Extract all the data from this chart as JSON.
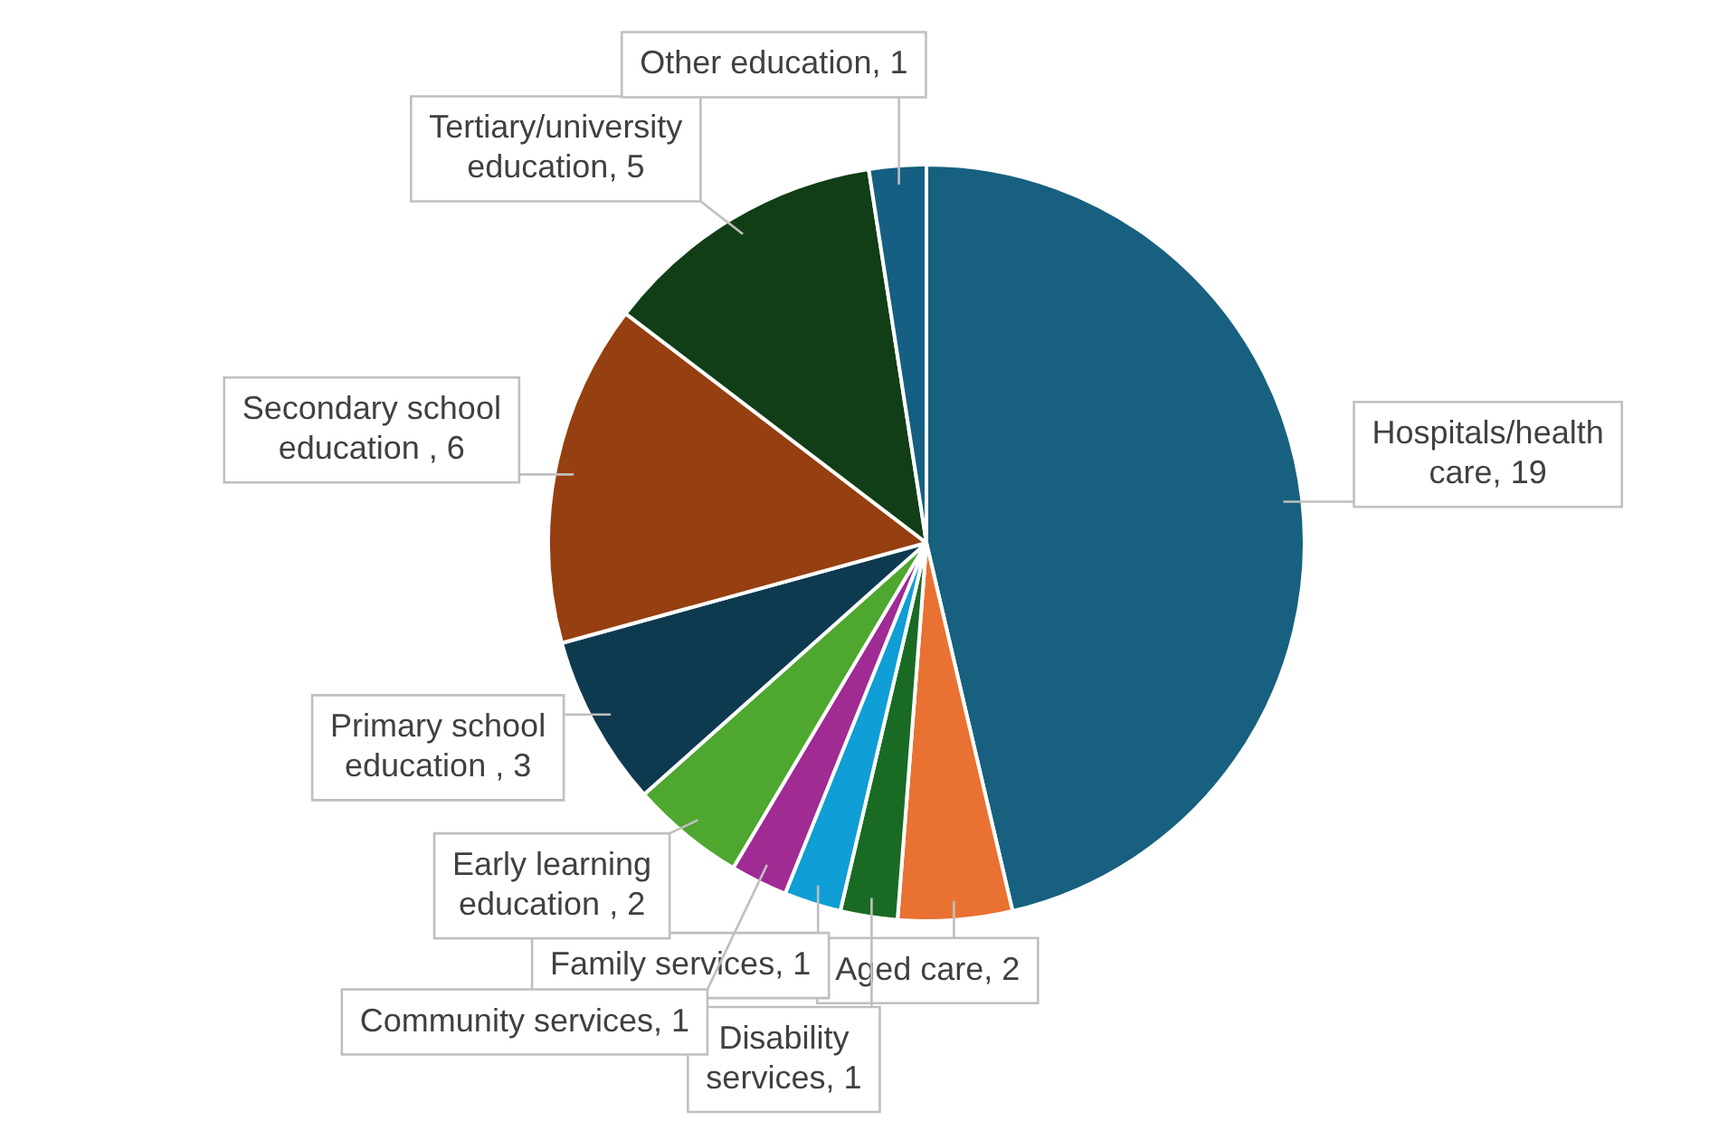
{
  "chart_data": {
    "type": "pie",
    "categories": [
      "Hospitals/health care",
      "Aged care",
      "Disability services",
      "Family services",
      "Community services",
      "Early learning education ",
      "Primary school education ",
      "Secondary school education ",
      "Tertiary/university education",
      "Other education"
    ],
    "values": [
      19,
      2,
      1,
      1,
      1,
      2,
      3,
      6,
      5,
      1
    ],
    "colors": [
      "#17607f",
      "#e97132",
      "#196b24",
      "#0f9ed5",
      "#a02b93",
      "#4ea72e",
      "#0e3a50",
      "#963f10",
      "#113e16",
      "#155f82"
    ],
    "value_labels": [
      ", 19",
      ", 2",
      ", 1",
      ", 1",
      ", 1",
      ", 2",
      ", 3",
      ", 6",
      ", 5",
      ", 1"
    ],
    "legend": false
  }
}
